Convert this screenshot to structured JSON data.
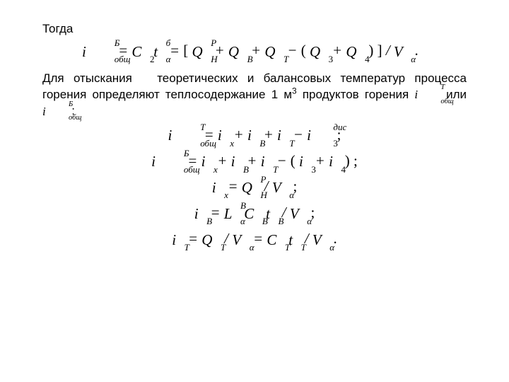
{
  "text": {
    "p1": "Тогда",
    "p2_pre": "Для отыскания",
    "p2_mid": "теоретических и балансовых температур процесса горения определяют теплосодержание 1 м",
    "cube": "3",
    "p2_post": " продуктов горения",
    "or": " или ",
    "p2_end": ":"
  },
  "sym": {
    "i": "i",
    "Q": "Q",
    "V": "V",
    "L": "L",
    "C": "C",
    "t": "t",
    "eq": " = ",
    "plus": " + ",
    "minus": " − ",
    "slash": " / ",
    "thin_slash": "/",
    "lbr": "[",
    "rbr": "]",
    "lpar": "(",
    "rpar": ")",
    "semi": "; ",
    "dot": "."
  },
  "sub": {
    "obsh": "общ",
    "alpha": "α",
    "x": "x",
    "B": "B",
    "T": "T",
    "H": "Н",
    "n2": "2",
    "n3": "3",
    "n4": "4"
  },
  "sup": {
    "B": "Б",
    "T": "Т",
    "P": "P",
    "b": "б",
    "dis": "дис",
    "Bv": "В"
  },
  "style": {
    "body_font_size_pt": 13,
    "math_font_size_pt": 16,
    "text_color": "#000000",
    "background_color": "#ffffff",
    "math_font_family": "Times New Roman",
    "body_font_family": "Arial"
  }
}
